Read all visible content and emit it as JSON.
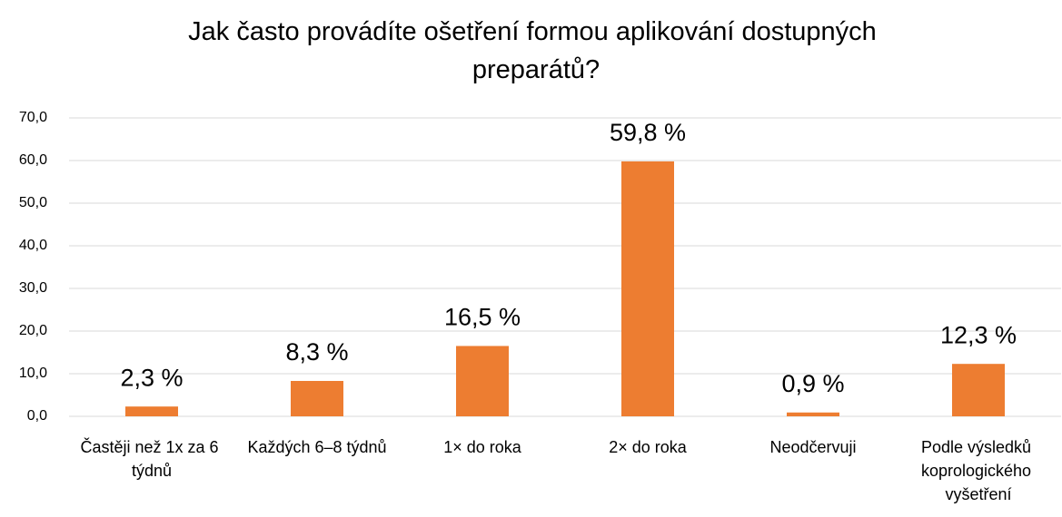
{
  "chart_data": {
    "type": "bar",
    "title": "Jak často provádíte ošetření formou aplikování dostupných preparátů?",
    "categories": [
      "Častěji než 1x za 6 týdnů",
      "Každých 6–8 týdnů",
      "1× do roka",
      "2× do roka",
      "Neodčervuji",
      "Podle výsledků koprologického vyšetření"
    ],
    "values": [
      2.3,
      8.3,
      16.5,
      59.8,
      0.9,
      12.3
    ],
    "value_labels": [
      "2,3 %",
      "8,3 %",
      "16,5 %",
      "59,8 %",
      "0,9 %",
      "12,3 %"
    ],
    "color": "#ed7d31",
    "ylim": [
      0,
      70
    ],
    "yticks": [
      {
        "value": 0,
        "label": "0,0"
      },
      {
        "value": 10,
        "label": "10,0"
      },
      {
        "value": 20,
        "label": "20,0"
      },
      {
        "value": 30,
        "label": "30,0"
      },
      {
        "value": 40,
        "label": "40,0"
      },
      {
        "value": 50,
        "label": "50,0"
      },
      {
        "value": 60,
        "label": "60,0"
      },
      {
        "value": 70,
        "label": "70,0"
      }
    ],
    "grid": true
  }
}
